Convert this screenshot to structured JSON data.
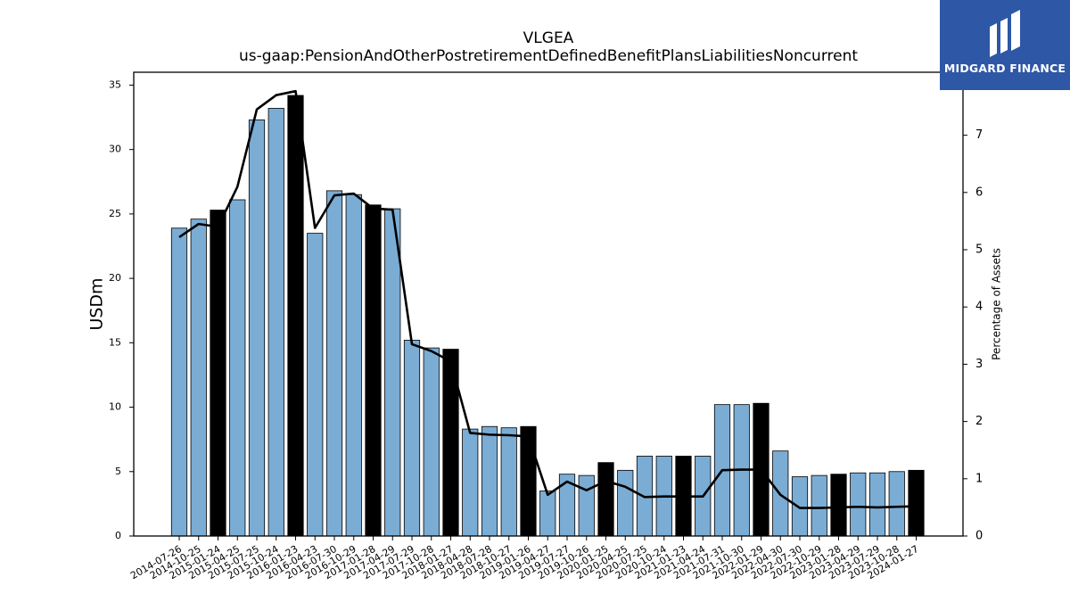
{
  "chart_data": {
    "type": "bar",
    "title": "VLGEA",
    "subtitle": "us-gaap:PensionAndOtherPostretirementDefinedBenefitPlansLiabilitiesNoncurrent",
    "ylabel": "USDm",
    "y2label": "Percentage of Assets",
    "ylim": [
      0,
      36
    ],
    "y2lim": [
      0,
      8.1
    ],
    "yticks": [
      0,
      5,
      10,
      15,
      20,
      25,
      30,
      35
    ],
    "y2ticks": [
      0,
      1,
      2,
      3,
      4,
      5,
      6,
      7
    ],
    "grid": false,
    "colors": {
      "bar": "#7bacd4",
      "highlight": "#000000",
      "line": "#000000"
    },
    "categories": [
      "2014-07-26",
      "2014-10-25",
      "2015-01-24",
      "2015-04-25",
      "2015-07-25",
      "2015-10-24",
      "2016-01-23",
      "2016-04-23",
      "2016-07-30",
      "2016-10-29",
      "2017-01-28",
      "2017-04-29",
      "2017-07-29",
      "2017-10-28",
      "2018-01-27",
      "2018-04-28",
      "2018-07-28",
      "2018-10-27",
      "2019-01-26",
      "2019-04-27",
      "2019-07-27",
      "2019-10-26",
      "2020-01-25",
      "2020-04-25",
      "2020-07-25",
      "2020-10-24",
      "2021-01-23",
      "2021-04-24",
      "2021-07-31",
      "2021-10-30",
      "2022-01-29",
      "2022-04-30",
      "2022-07-30",
      "2022-10-29",
      "2023-01-28",
      "2023-04-29",
      "2023-07-29",
      "2023-10-28",
      "2024-01-27"
    ],
    "series": [
      {
        "values": [
          23.9,
          24.6,
          25.3,
          26.1,
          32.3,
          33.2,
          34.2,
          23.5,
          26.8,
          26.5,
          25.7,
          25.4,
          15.2,
          14.6,
          14.5,
          8.3,
          8.5,
          8.4,
          8.5,
          3.5,
          4.8,
          4.7,
          5.7,
          5.1,
          6.2,
          6.2,
          6.2,
          6.2,
          10.2,
          10.2,
          10.3,
          6.6,
          4.6,
          4.7,
          4.8,
          4.9,
          4.9,
          5.0,
          5.1
        ],
        "highlight": [
          false,
          false,
          true,
          false,
          false,
          false,
          true,
          false,
          false,
          false,
          true,
          false,
          false,
          false,
          true,
          false,
          false,
          false,
          true,
          false,
          false,
          false,
          true,
          false,
          false,
          false,
          true,
          false,
          false,
          false,
          true,
          false,
          false,
          false,
          true,
          false,
          false,
          false,
          true
        ]
      },
      {
        "axis": "right",
        "type": "line",
        "values": [
          5.22,
          5.45,
          5.4,
          6.1,
          7.45,
          7.7,
          7.77,
          5.38,
          5.95,
          5.98,
          5.72,
          5.7,
          3.35,
          3.23,
          3.05,
          1.8,
          1.77,
          1.76,
          1.74,
          0.72,
          0.95,
          0.8,
          0.96,
          0.86,
          0.68,
          0.69,
          0.69,
          0.69,
          1.15,
          1.16,
          1.16,
          0.72,
          0.49,
          0.49,
          0.5,
          0.51,
          0.5,
          0.51,
          0.52
        ]
      }
    ]
  },
  "logo": {
    "text": "MIDGARD FINANCE",
    "icon": "midgard-logo-icon"
  }
}
